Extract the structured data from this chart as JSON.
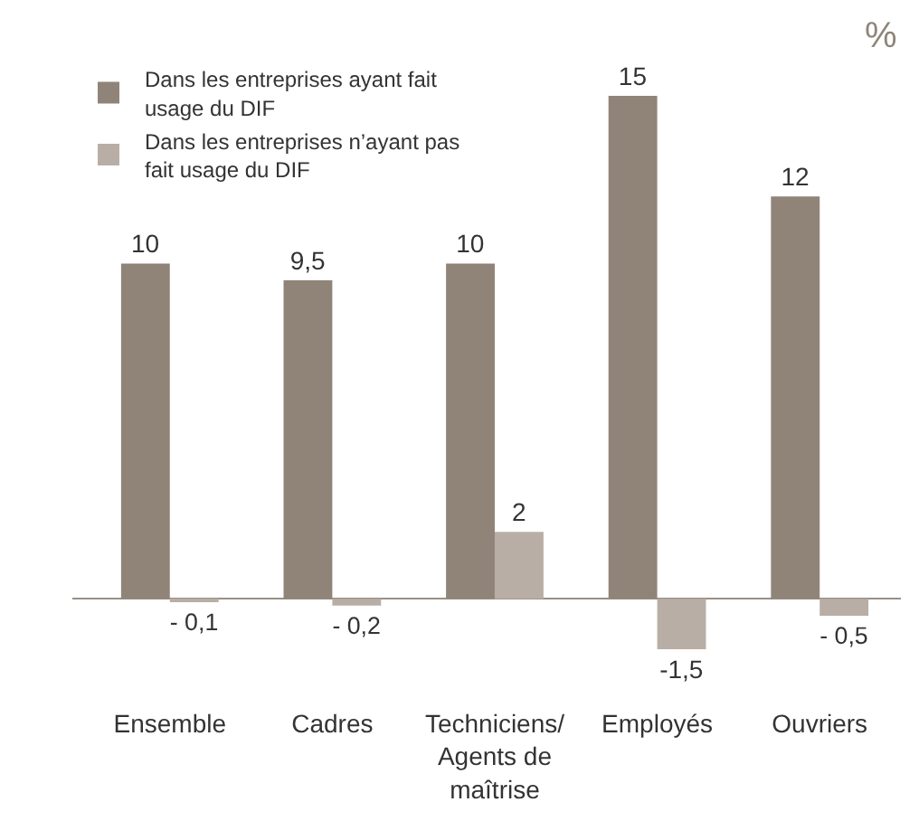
{
  "chart_data": {
    "type": "bar",
    "categories": [
      "Ensemble",
      "Cadres",
      "Techniciens/ Agents de maîtrise",
      "Employés",
      "Ouvriers"
    ],
    "series": [
      {
        "name": "Dans les entreprises ayant fait usage du DIF",
        "color": "#908479",
        "values": [
          10,
          9.5,
          10,
          15,
          12
        ],
        "value_labels": [
          "10",
          "9,5",
          "10",
          "15",
          "12"
        ]
      },
      {
        "name": "Dans les entreprises n’ayant pas fait usage du DIF",
        "color": "#b8aea6",
        "values": [
          -0.1,
          -0.2,
          2,
          -1.5,
          -0.5
        ],
        "value_labels": [
          "- 0,1",
          "- 0,2",
          "2",
          "-1,5",
          "- 0,5"
        ]
      }
    ],
    "annotations": [
      "%"
    ],
    "legend": "top left",
    "grid": false
  }
}
